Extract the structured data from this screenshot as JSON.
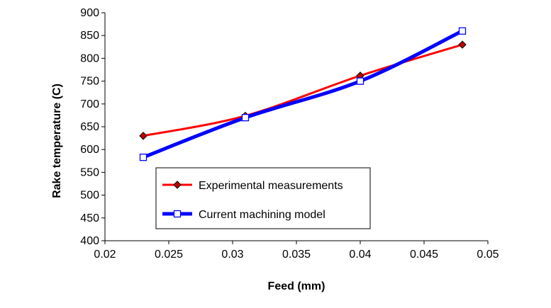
{
  "chart_data": {
    "type": "line",
    "title": "",
    "xlabel": "Feed (mm)",
    "ylabel": "Rake temperature (C)",
    "xlim": [
      0.02,
      0.05
    ],
    "ylim": [
      400,
      900
    ],
    "x_ticks": [
      "0.02",
      "0.025",
      "0.03",
      "0.035",
      "0.04",
      "0.045",
      "0.05"
    ],
    "y_ticks": [
      "400",
      "450",
      "500",
      "550",
      "600",
      "650",
      "700",
      "750",
      "800",
      "850",
      "900"
    ],
    "x_tick_values": [
      0.02,
      0.025,
      0.03,
      0.035,
      0.04,
      0.045,
      0.05
    ],
    "y_tick_values": [
      400,
      450,
      500,
      550,
      600,
      650,
      700,
      750,
      800,
      850,
      900
    ],
    "grid": false,
    "legend_position": "center-left",
    "series": [
      {
        "name": "Experimental measurements",
        "color": "#ff0000",
        "marker": "diamond",
        "marker_color": "#c00000",
        "x": [
          0.023,
          0.031,
          0.04,
          0.048
        ],
        "values": [
          630,
          674,
          762,
          830
        ]
      },
      {
        "name": "Current machining model",
        "color": "#0000ff",
        "marker": "square",
        "marker_color": "#0000ff",
        "x": [
          0.023,
          0.031,
          0.04,
          0.048
        ],
        "values": [
          583,
          670,
          750,
          860
        ]
      }
    ]
  }
}
